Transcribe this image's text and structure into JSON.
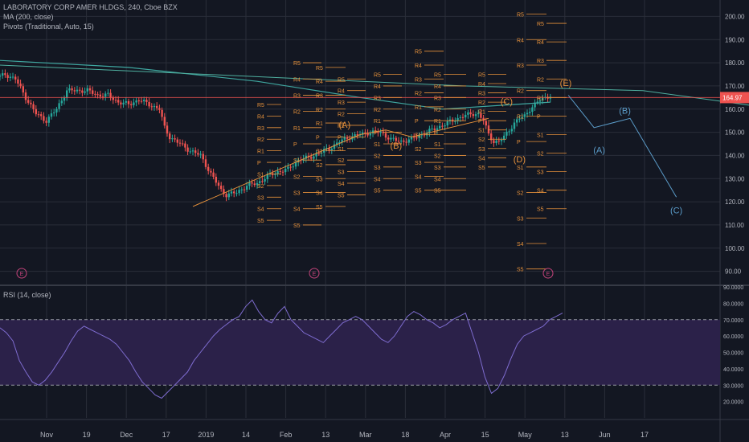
{
  "header": {
    "symbol_line": "LABORATORY CORP AMER HLDGS, 240, Cboe BZX",
    "ma_line": "MA (200, close)",
    "pivots_line": "Pivots (Traditional, Auto, 15)",
    "rsi_line": "RSI (14, close)"
  },
  "colors": {
    "background": "#131722",
    "grid": "#2a2e39",
    "candle_up": "#26a69a",
    "candle_down": "#ef5350",
    "ma": "#3fa7a0",
    "pivot": "#e6913b",
    "wave": "#e6913b",
    "projection": "#5b9cc9",
    "rsi_line": "#7e6ccf",
    "rsi_band": "#2b2149",
    "price_tag": "#ef5350"
  },
  "chart_data": [
    {
      "type": "candlestick",
      "title": "LABORATORY CORP AMER HLDGS, 240, Cboe BZX",
      "ylim": [
        85,
        205
      ],
      "y_ticks": [
        "200.00",
        "190.00",
        "180.00",
        "170.00",
        "160.00",
        "150.00",
        "140.00",
        "130.00",
        "120.00",
        "110.00",
        "100.00",
        "90.00"
      ],
      "x_ticks": [
        "Nov",
        "19",
        "Dec",
        "17",
        "2019",
        "14",
        "Feb",
        "13",
        "Mar",
        "18",
        "Apr",
        "15",
        "May",
        "13",
        "Jun",
        "17"
      ],
      "last_price": "164.97",
      "price_path": [
        [
          0,
          174
        ],
        [
          2,
          175
        ],
        [
          6,
          173
        ],
        [
          10,
          165
        ],
        [
          14,
          158
        ],
        [
          18,
          155
        ],
        [
          22,
          160
        ],
        [
          26,
          168
        ],
        [
          30,
          168
        ],
        [
          34,
          168
        ],
        [
          38,
          166
        ],
        [
          42,
          166
        ],
        [
          46,
          163
        ],
        [
          50,
          162
        ],
        [
          54,
          164
        ],
        [
          58,
          162
        ],
        [
          62,
          160
        ],
        [
          64,
          152
        ],
        [
          66,
          148
        ],
        [
          70,
          145
        ],
        [
          74,
          142
        ],
        [
          78,
          140
        ],
        [
          82,
          132
        ],
        [
          86,
          125
        ],
        [
          88,
          123
        ],
        [
          92,
          124
        ],
        [
          96,
          127
        ],
        [
          100,
          128
        ],
        [
          104,
          131
        ],
        [
          108,
          133
        ],
        [
          112,
          134
        ],
        [
          116,
          138
        ],
        [
          120,
          139
        ],
        [
          124,
          141
        ],
        [
          128,
          143
        ],
        [
          132,
          146
        ],
        [
          136,
          148
        ],
        [
          140,
          149
        ],
        [
          144,
          150
        ],
        [
          148,
          150
        ],
        [
          152,
          147
        ],
        [
          156,
          146
        ],
        [
          160,
          147
        ],
        [
          164,
          149
        ],
        [
          168,
          151
        ],
        [
          172,
          153
        ],
        [
          176,
          155
        ],
        [
          180,
          157
        ],
        [
          184,
          158
        ],
        [
          186,
          158
        ],
        [
          188,
          155
        ],
        [
          190,
          149
        ],
        [
          192,
          146
        ],
        [
          194,
          146
        ],
        [
          196,
          148
        ],
        [
          198,
          151
        ],
        [
          200,
          154
        ],
        [
          202,
          156
        ],
        [
          204,
          157
        ],
        [
          206,
          160
        ],
        [
          208,
          162
        ],
        [
          210,
          164
        ],
        [
          212,
          165
        ],
        [
          214,
          166
        ]
      ],
      "moving_average_200": [
        [
          0,
          181
        ],
        [
          50,
          178
        ],
        [
          100,
          172
        ],
        [
          140,
          165
        ],
        [
          172,
          160
        ],
        [
          200,
          162
        ],
        [
          214,
          163
        ]
      ],
      "long_line": [
        [
          0,
          179
        ],
        [
          60,
          176
        ],
        [
          120,
          173
        ],
        [
          180,
          170
        ],
        [
          250,
          168
        ],
        [
          296,
          161
        ]
      ],
      "wave_labels": [
        "(A)",
        "(B)",
        "(C)",
        "(D)",
        "(E)"
      ],
      "projection_labels": [
        "(A)",
        "(B)",
        "(C)"
      ],
      "earnings_markers": [
        "E",
        "E",
        "E"
      ],
      "pivot_labels": [
        "R5",
        "R4",
        "R3",
        "R2",
        "R1",
        "P",
        "S1",
        "S2",
        "S3",
        "S4",
        "S5"
      ]
    },
    {
      "type": "line",
      "title": "RSI (14, close)",
      "ylim": [
        10,
        90
      ],
      "y_ticks": [
        "90.0000",
        "80.0000",
        "70.0000",
        "60.0000",
        "50.0000",
        "40.0000",
        "30.0000",
        "20.0000"
      ],
      "band": [
        30,
        70
      ],
      "values": [
        65,
        62,
        57,
        45,
        38,
        32,
        30,
        33,
        38,
        44,
        50,
        57,
        63,
        66,
        64,
        62,
        60,
        58,
        55,
        50,
        45,
        38,
        32,
        28,
        24,
        22,
        26,
        30,
        34,
        38,
        45,
        50,
        55,
        60,
        64,
        67,
        70,
        72,
        78,
        82,
        75,
        70,
        68,
        74,
        78,
        70,
        66,
        62,
        60,
        58,
        56,
        60,
        64,
        68,
        70,
        72,
        70,
        66,
        62,
        58,
        56,
        60,
        66,
        72,
        75,
        73,
        70,
        68,
        65,
        67,
        70,
        72,
        74,
        62,
        50,
        35,
        25,
        28,
        36,
        46,
        55,
        60,
        62,
        64,
        66,
        70,
        72,
        74
      ]
    }
  ]
}
